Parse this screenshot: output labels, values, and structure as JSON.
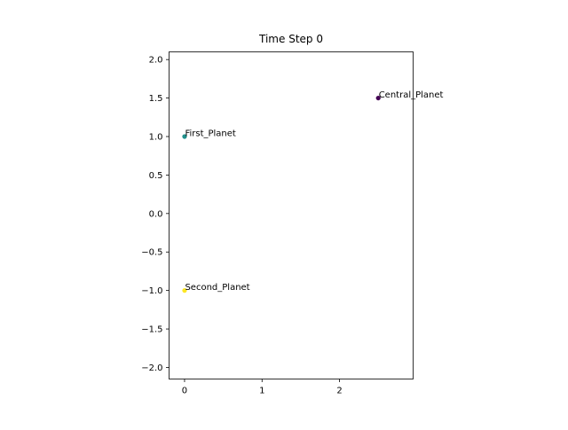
{
  "chart_data": {
    "type": "scatter",
    "title": "Time Step 0",
    "xlabel": "",
    "ylabel": "",
    "xlim": [
      -0.2,
      2.95
    ],
    "ylim": [
      -2.15,
      2.1
    ],
    "xticks": [
      0,
      1,
      2
    ],
    "xtick_labels": [
      "0",
      "1",
      "2"
    ],
    "yticks": [
      -2.0,
      -1.5,
      -1.0,
      -0.5,
      0.0,
      0.5,
      1.0,
      1.5,
      2.0
    ],
    "ytick_labels": [
      "−2.0",
      "−1.5",
      "−1.0",
      "−0.5",
      "0.0",
      "0.5",
      "1.0",
      "1.5",
      "2.0"
    ],
    "grid": false,
    "points": [
      {
        "label": "Central_Planet",
        "x": 2.5,
        "y": 1.5,
        "color": "#440154"
      },
      {
        "label": "First_Planet",
        "x": 0.0,
        "y": 1.0,
        "color": "#21918c"
      },
      {
        "label": "Second_Planet",
        "x": 0.0,
        "y": -1.0,
        "color": "#fde725"
      }
    ]
  }
}
